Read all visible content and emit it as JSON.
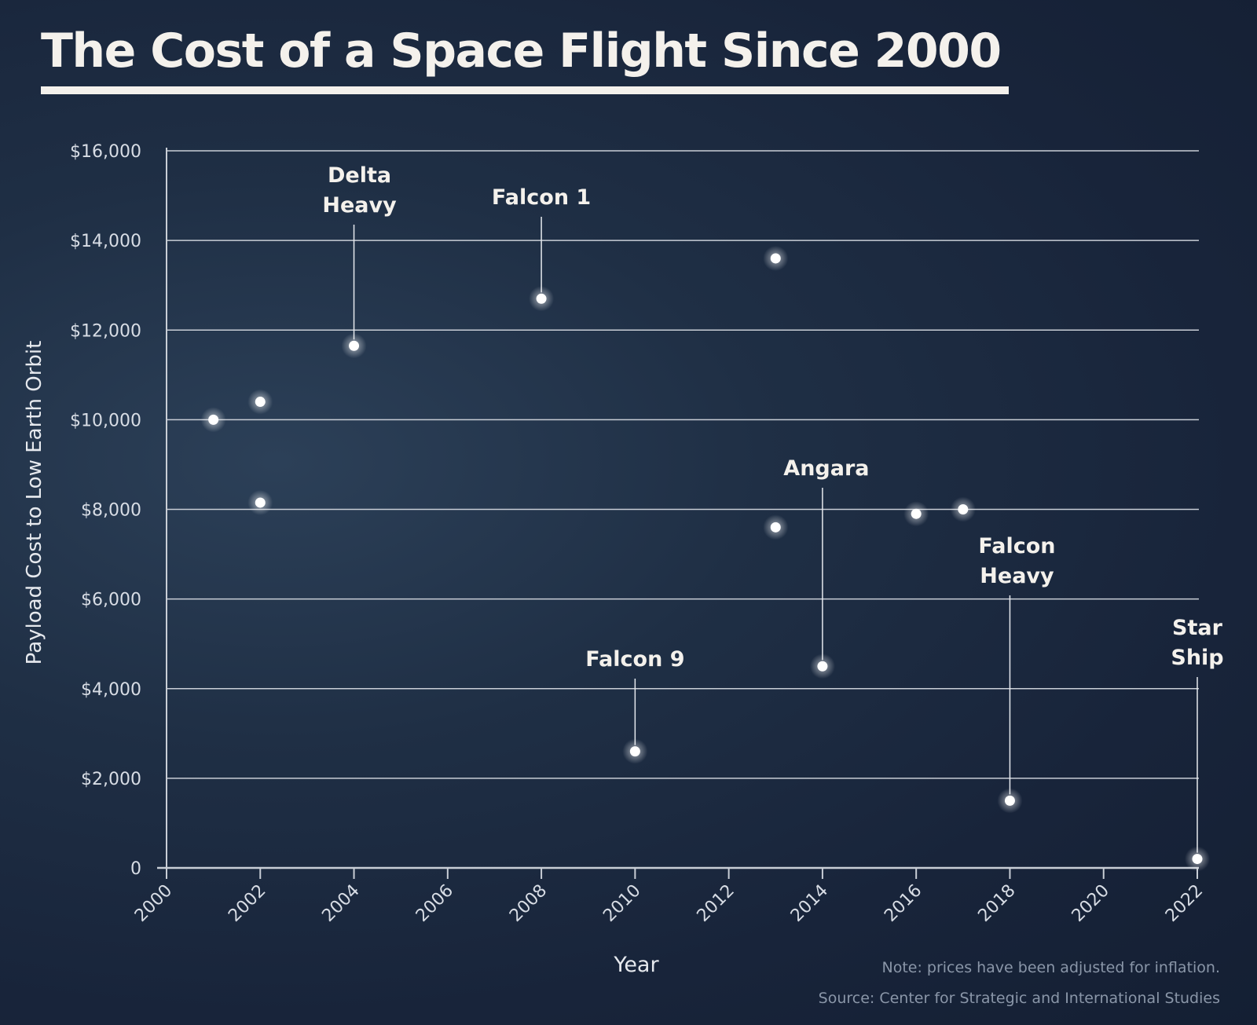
{
  "chart_data": {
    "type": "scatter",
    "title": "The Cost of a Space Flight Since 2000",
    "xlabel": "Year",
    "ylabel": "Payload Cost to Low Earth Orbit",
    "xlim": [
      2000,
      2022
    ],
    "ylim": [
      0,
      16000
    ],
    "x_ticks": [
      "2000",
      "2002",
      "2004",
      "2006",
      "2008",
      "2010",
      "2012",
      "2014",
      "2016",
      "2018",
      "2020",
      "2022"
    ],
    "y_ticks": [
      "0",
      "$2,000",
      "$4,000",
      "$6,000",
      "$8,000",
      "$10,000",
      "$12,000",
      "$14,000",
      "$16,000"
    ],
    "grid": "horizontal",
    "points": [
      {
        "x": 2001,
        "y": 10000
      },
      {
        "x": 2002,
        "y": 10400
      },
      {
        "x": 2002,
        "y": 8150
      },
      {
        "x": 2004,
        "y": 11650,
        "label": [
          "Delta",
          "Heavy"
        ]
      },
      {
        "x": 2008,
        "y": 12700,
        "label": [
          "Falcon 1"
        ]
      },
      {
        "x": 2010,
        "y": 2600,
        "label": [
          "Falcon 9"
        ]
      },
      {
        "x": 2013,
        "y": 13600
      },
      {
        "x": 2013,
        "y": 7600
      },
      {
        "x": 2014,
        "y": 4500,
        "label": [
          "Angara"
        ]
      },
      {
        "x": 2016,
        "y": 7900
      },
      {
        "x": 2017,
        "y": 8000
      },
      {
        "x": 2018,
        "y": 1500,
        "label": [
          "Falcon",
          "Heavy"
        ]
      },
      {
        "x": 2022,
        "y": 200,
        "label": [
          "Star",
          "Ship"
        ]
      }
    ],
    "notes": [
      "Note: prices have been adjusted for inflation.",
      "Source: Center for Strategic and International Studies"
    ]
  },
  "colors": {
    "background": "#1b2a40",
    "text": "#f4f1ec",
    "point": "#ffffff",
    "grid": "#c9ced6"
  }
}
